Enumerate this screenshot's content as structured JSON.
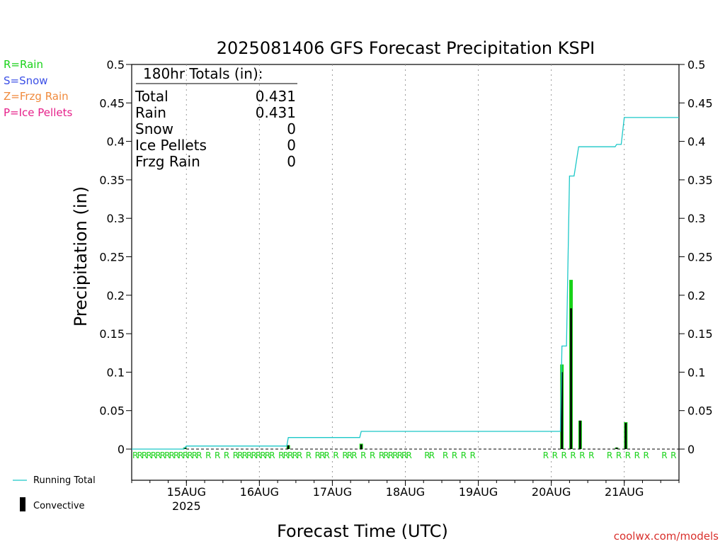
{
  "colors": {
    "rain": "#19d219",
    "snow": "#3c50e6",
    "frzg_rain": "#f08a3c",
    "ice_pellets": "#e6208a",
    "running_total": "#1cc8c8",
    "convective": "#000000",
    "credit": "#d9302c"
  },
  "ptype_legend": [
    {
      "text": "R=Rain",
      "color_key": "rain"
    },
    {
      "text": "S=Snow",
      "color_key": "snow"
    },
    {
      "text": "Z=Frzg Rain",
      "color_key": "frzg_rain"
    },
    {
      "text": "P=Ice Pellets",
      "color_key": "ice_pellets"
    }
  ],
  "bottom_legend": {
    "running_total": "Running Total",
    "convective": "Convective"
  },
  "credit": "coolwx.com/models",
  "totals_box": {
    "heading": "180hr Totals (in):",
    "rows": [
      {
        "label": "Total",
        "value": "0.431"
      },
      {
        "label": "Rain",
        "value": "0.431"
      },
      {
        "label": "Snow",
        "value": "0"
      },
      {
        "label": "Ice Pellets",
        "value": "0"
      },
      {
        "label": "Frzg Rain",
        "value": "0"
      }
    ]
  },
  "chart_data": {
    "type": "bar",
    "title": "2025081406 GFS Forecast Precipitation KSPI",
    "xlabel": "Forecast Time (UTC)",
    "ylabel": "Precipitation (in)",
    "x_unit": "forecast hour",
    "xlim": [
      0,
      180
    ],
    "ylim": [
      0,
      0.5
    ],
    "y_ticks": [
      "0",
      "0.05",
      "0.1",
      "0.15",
      "0.2",
      "0.25",
      "0.3",
      "0.35",
      "0.4",
      "0.45",
      "0.5"
    ],
    "x_ticks": [
      {
        "hour": 18,
        "label": "15AUG",
        "sublabel": "2025"
      },
      {
        "hour": 42,
        "label": "16AUG",
        "sublabel": ""
      },
      {
        "hour": 66,
        "label": "17AUG",
        "sublabel": ""
      },
      {
        "hour": 90,
        "label": "18AUG",
        "sublabel": ""
      },
      {
        "hour": 114,
        "label": "19AUG",
        "sublabel": ""
      },
      {
        "hour": 138,
        "label": "20AUG",
        "sublabel": ""
      },
      {
        "hour": 162,
        "label": "21AUG",
        "sublabel": ""
      }
    ],
    "grid": "vertical dotted at day boundaries",
    "series": [
      {
        "name": "Running Total",
        "kind": "line",
        "points": [
          [
            0,
            0
          ],
          [
            17,
            0
          ],
          [
            18,
            0.004
          ],
          [
            51,
            0.004
          ],
          [
            51.5,
            0.015
          ],
          [
            75,
            0.015
          ],
          [
            75.5,
            0.023
          ],
          [
            141,
            0.023
          ],
          [
            141.5,
            0.134
          ],
          [
            143,
            0.134
          ],
          [
            144,
            0.355
          ],
          [
            145.5,
            0.355
          ],
          [
            147,
            0.393
          ],
          [
            159,
            0.393
          ],
          [
            159.5,
            0.396
          ],
          [
            161,
            0.396
          ],
          [
            162,
            0.431
          ],
          [
            180,
            0.431
          ]
        ]
      },
      {
        "name": "Rain",
        "kind": "bars",
        "points": [
          [
            17.5,
            0.002
          ],
          [
            51.5,
            0.005
          ],
          [
            75.5,
            0.007
          ],
          [
            141.5,
            0.11
          ],
          [
            144.5,
            0.22
          ],
          [
            147.5,
            0.037
          ],
          [
            159.5,
            0.002
          ],
          [
            162.5,
            0.035
          ]
        ]
      },
      {
        "name": "Convective",
        "kind": "bars",
        "points": [
          [
            17.5,
            0.002
          ],
          [
            51.5,
            0.005
          ],
          [
            75.5,
            0.006
          ],
          [
            141.5,
            0.1
          ],
          [
            144.5,
            0.183
          ],
          [
            147.5,
            0.037
          ],
          [
            159.5,
            0.002
          ],
          [
            162.5,
            0.034
          ]
        ]
      }
    ],
    "ptype_markers": {
      "text": "R",
      "hours": [
        0,
        1.5,
        3,
        4.5,
        6,
        7.5,
        9,
        10.5,
        12,
        13.5,
        15,
        16.5,
        18,
        19.5,
        21,
        24,
        27,
        30,
        33,
        34.5,
        36,
        37.5,
        39,
        40.5,
        42,
        43.5,
        45,
        48,
        49.5,
        51,
        52.5,
        54,
        57,
        60,
        61.5,
        63,
        66,
        69,
        70.5,
        72,
        75,
        78,
        81,
        82.5,
        84,
        85.5,
        87,
        88.5,
        90,
        96,
        97.5,
        102,
        105,
        108,
        111,
        135,
        138,
        141,
        144,
        147,
        150,
        156,
        159,
        162,
        165,
        168,
        174,
        177
      ]
    }
  }
}
